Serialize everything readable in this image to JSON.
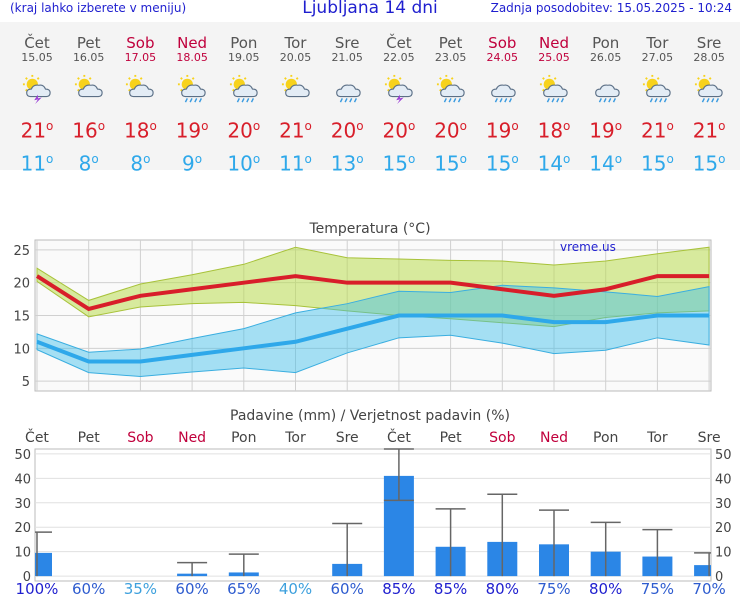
{
  "header": {
    "left_note": "(kraj lahko izberete v meniju)",
    "title": "Ljubljana 14 dni",
    "updated": "Zadnja posodobitev: 15.05.2025 - 10:24"
  },
  "days": [
    {
      "name": "Čet",
      "date": "15.05",
      "weekend": false,
      "icon": "sun-cloud-thunder-icon",
      "tmax": "21",
      "tmin": "11"
    },
    {
      "name": "Pet",
      "date": "16.05",
      "weekend": false,
      "icon": "sun-cloud-icon",
      "tmax": "16",
      "tmin": "8"
    },
    {
      "name": "Sob",
      "date": "17.05",
      "weekend": true,
      "icon": "sun-cloud-icon",
      "tmax": "18",
      "tmin": "8"
    },
    {
      "name": "Ned",
      "date": "18.05",
      "weekend": true,
      "icon": "sun-cloud-rain-icon",
      "tmax": "19",
      "tmin": "9"
    },
    {
      "name": "Pon",
      "date": "19.05",
      "weekend": false,
      "icon": "sun-cloud-rain-icon",
      "tmax": "20",
      "tmin": "10"
    },
    {
      "name": "Tor",
      "date": "20.05",
      "weekend": false,
      "icon": "sun-cloud-icon",
      "tmax": "21",
      "tmin": "11"
    },
    {
      "name": "Sre",
      "date": "21.05",
      "weekend": false,
      "icon": "cloud-rain-icon",
      "tmax": "20",
      "tmin": "13"
    },
    {
      "name": "Čet",
      "date": "22.05",
      "weekend": false,
      "icon": "sun-cloud-thunder-icon",
      "tmax": "20",
      "tmin": "15"
    },
    {
      "name": "Pet",
      "date": "23.05",
      "weekend": false,
      "icon": "sun-cloud-rain-icon",
      "tmax": "20",
      "tmin": "15"
    },
    {
      "name": "Sob",
      "date": "24.05",
      "weekend": true,
      "icon": "cloud-rain-icon",
      "tmax": "19",
      "tmin": "15"
    },
    {
      "name": "Ned",
      "date": "25.05",
      "weekend": true,
      "icon": "sun-cloud-rain-icon",
      "tmax": "18",
      "tmin": "14"
    },
    {
      "name": "Pon",
      "date": "26.05",
      "weekend": false,
      "icon": "cloud-rain-icon",
      "tmax": "19",
      "tmin": "14"
    },
    {
      "name": "Tor",
      "date": "27.05",
      "weekend": false,
      "icon": "sun-cloud-rain-icon",
      "tmax": "21",
      "tmin": "15"
    },
    {
      "name": "Sre",
      "date": "28.05",
      "weekend": false,
      "icon": "sun-cloud-rain-icon",
      "tmax": "21",
      "tmin": "15"
    }
  ],
  "colors": {
    "tmax": "#d81e2a",
    "tmin": "#2ea8ea",
    "bar": "#2b86e6",
    "weekend": "#c0003c"
  },
  "chart_data": [
    {
      "type": "line",
      "title": "Temperatura (°C)",
      "watermark": "vreme.us",
      "x": [
        0,
        1,
        2,
        3,
        4,
        5,
        6,
        7,
        8,
        9,
        10,
        11,
        12,
        13
      ],
      "categories": [
        "15.05",
        "16.05",
        "17.05",
        "18.05",
        "19.05",
        "20.05",
        "21.05",
        "22.05",
        "23.05",
        "24.05",
        "25.05",
        "26.05",
        "27.05",
        "28.05"
      ],
      "yticks": [
        5,
        10,
        15,
        20,
        25
      ],
      "ylim": [
        3.5,
        26.5
      ],
      "grid": true,
      "series": [
        {
          "values": [
            21,
            16,
            18,
            19,
            20,
            21,
            20,
            20,
            20,
            19,
            18,
            19,
            21,
            21
          ]
        },
        {
          "values": [
            22.2,
            17.3,
            19.8,
            21.2,
            22.8,
            25.4,
            23.8,
            23.6,
            23.4,
            23.3,
            22.7,
            23.3,
            24.4,
            25.4
          ]
        },
        {
          "values": [
            20.2,
            14.8,
            16.3,
            16.8,
            17.0,
            16.5,
            15.7,
            15.0,
            14.5,
            13.9,
            13.3,
            14.7,
            15.4,
            15.7
          ]
        },
        {
          "values": [
            11,
            8,
            8,
            9,
            10,
            11,
            13,
            15,
            15,
            15,
            14,
            14,
            15,
            15
          ]
        },
        {
          "values": [
            12.2,
            9.4,
            9.9,
            11.5,
            13.0,
            15.4,
            16.8,
            18.7,
            18.5,
            19.6,
            19.2,
            18.6,
            17.9,
            19.4
          ]
        },
        {
          "values": [
            9.8,
            6.3,
            5.7,
            6.4,
            7.0,
            6.3,
            9.3,
            11.6,
            12.0,
            10.8,
            9.2,
            9.7,
            11.6,
            10.5
          ]
        }
      ]
    },
    {
      "type": "bar",
      "title": "Padavine (mm) / Verjetnost padavin (%)",
      "categories": [
        "Čet",
        "Pet",
        "Sob",
        "Ned",
        "Pon",
        "Tor",
        "Sre",
        "Čet",
        "Pet",
        "Sob",
        "Ned",
        "Pon",
        "Tor",
        "Sre"
      ],
      "weekend": [
        false,
        false,
        true,
        true,
        false,
        false,
        false,
        false,
        false,
        true,
        true,
        false,
        false,
        false
      ],
      "yticks": [
        0,
        10,
        20,
        30,
        40,
        50
      ],
      "ylim": [
        -2,
        52
      ],
      "values": [
        9.5,
        0,
        0,
        1,
        1.5,
        0,
        5,
        41,
        12,
        14,
        13,
        10,
        8,
        4.5
      ],
      "err_low": [
        0,
        0,
        0,
        0,
        0,
        0,
        0,
        31,
        0,
        0,
        0,
        0,
        0,
        0
      ],
      "err_high": [
        18,
        0,
        0,
        5.5,
        9,
        0,
        21.5,
        52,
        27.5,
        33.5,
        27,
        22,
        19,
        9.5
      ],
      "probability": [
        "100%",
        "60%",
        "35%",
        "60%",
        "65%",
        "40%",
        "60%",
        "85%",
        "85%",
        "80%",
        "75%",
        "80%",
        "75%",
        "70%"
      ],
      "probability_colors": [
        "#1f1fcf",
        "#2e5ccf",
        "#3da0dd",
        "#2e5ccf",
        "#2e5ccf",
        "#3da0dd",
        "#2e5ccf",
        "#1f1fcf",
        "#1f1fcf",
        "#1f1fcf",
        "#2e5ccf",
        "#1f1fcf",
        "#2e5ccf",
        "#2e5ccf"
      ]
    }
  ]
}
